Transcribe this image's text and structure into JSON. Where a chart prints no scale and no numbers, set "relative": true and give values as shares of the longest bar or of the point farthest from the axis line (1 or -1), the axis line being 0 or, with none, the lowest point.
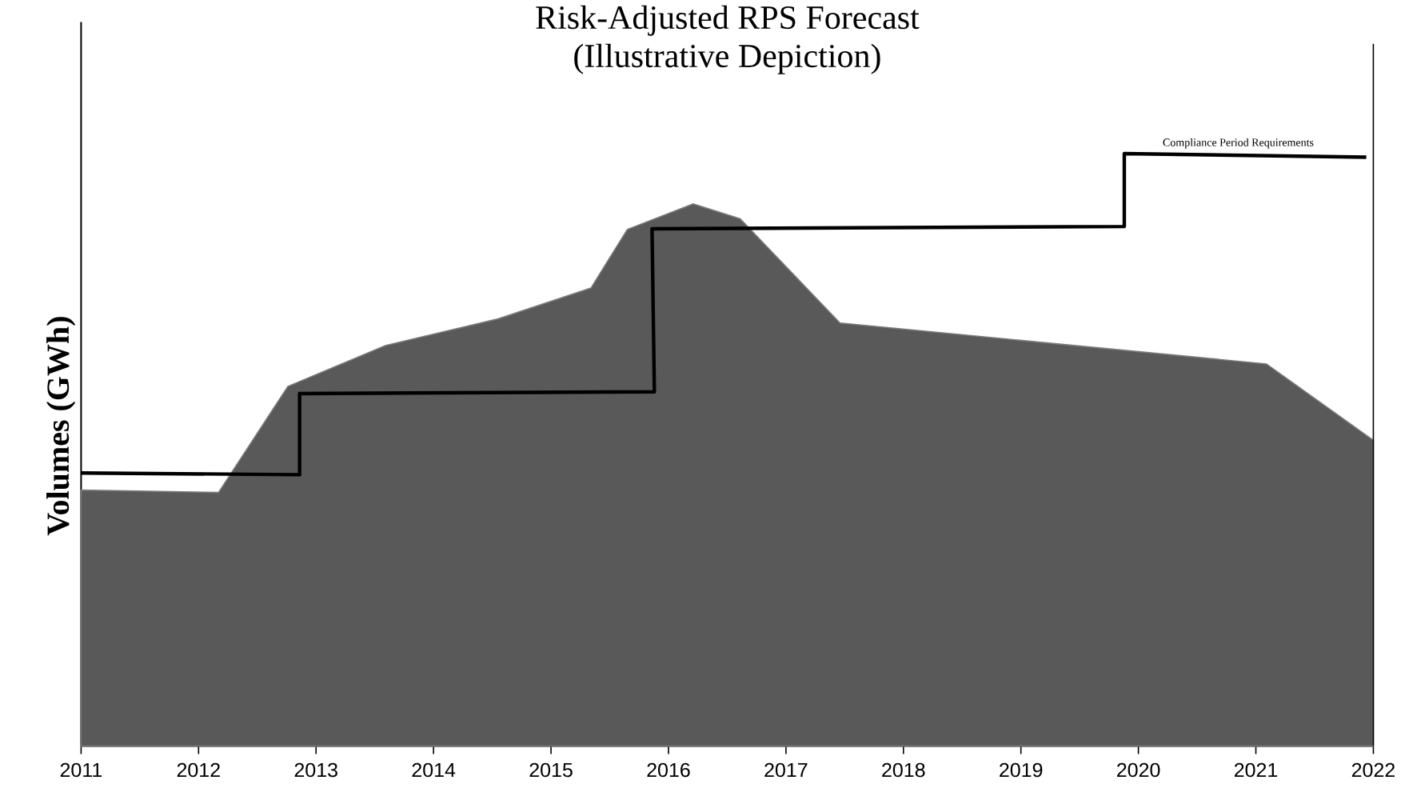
{
  "chart_data": {
    "type": "area",
    "title": "Risk-Adjusted RPS Forecast",
    "subtitle": "(Illustrative Depiction)",
    "ylabel": "Volumes (GWh)",
    "relative": true,
    "xlim": [
      2011,
      2022
    ],
    "xticks": [
      2011,
      2012,
      2013,
      2014,
      2015,
      2016,
      2017,
      2018,
      2019,
      2020,
      2021,
      2022
    ],
    "series": [
      {
        "color": "#595959",
        "x": [
          2011,
          2012.17,
          2012.76,
          2013.59,
          2014.55,
          2015.34,
          2015.65,
          2016.21,
          2016.61,
          2017.46,
          2021.09,
          2022
        ],
        "values": [
          0.432,
          0.428,
          0.607,
          0.676,
          0.721,
          0.773,
          0.872,
          0.915,
          0.89,
          0.714,
          0.645,
          0.516
        ]
      },
      {
        "type": "line",
        "color": "#000000",
        "x": [
          2011,
          2012.86,
          2012.86,
          2015.88,
          2015.86,
          2019.88,
          2019.88,
          2021.94
        ],
        "values": [
          0.461,
          0.458,
          0.595,
          0.598,
          0.873,
          0.877,
          1,
          0.994
        ]
      }
    ],
    "annotations": [
      {
        "text": "Compliance Period Requirements",
        "x": 2020.85,
        "y": 1
      }
    ]
  }
}
